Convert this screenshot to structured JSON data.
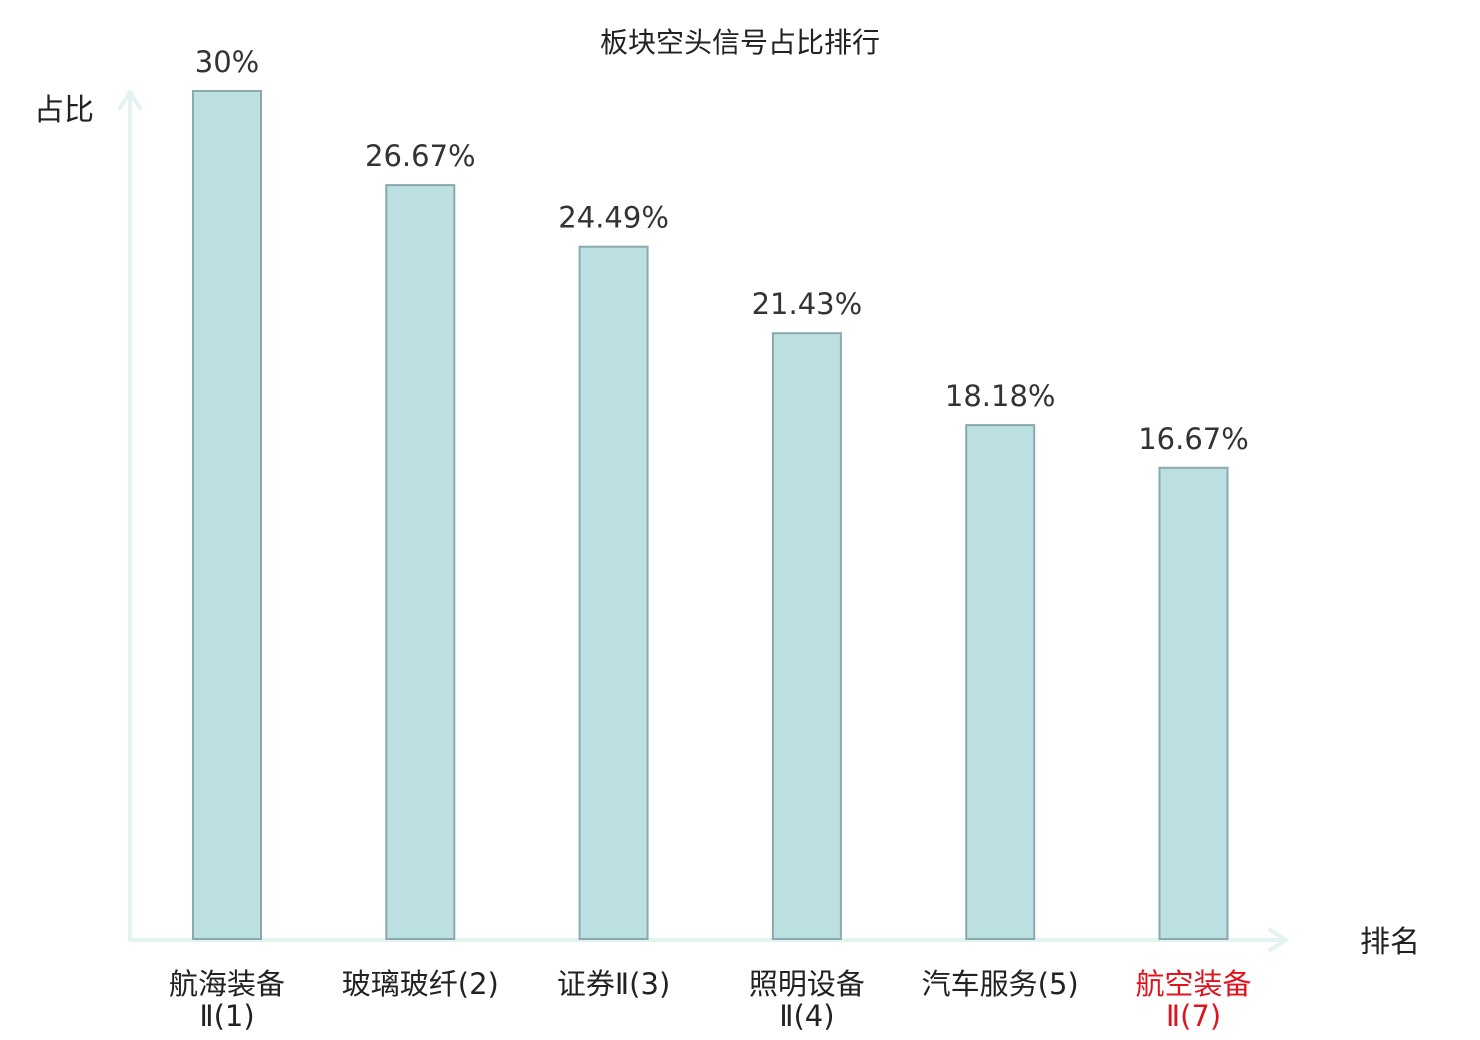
{
  "chart_data": {
    "type": "bar",
    "title": "板块空头信号占比排行",
    "ylabel": "占比",
    "xlabel": "排名",
    "categories": [
      {
        "lines": [
          "航海装备",
          "Ⅱ(1)"
        ],
        "highlight": false
      },
      {
        "lines": [
          "玻璃玻纤(2)"
        ],
        "highlight": false
      },
      {
        "lines": [
          "证券Ⅱ(3)"
        ],
        "highlight": false
      },
      {
        "lines": [
          "照明设备",
          "Ⅱ(4)"
        ],
        "highlight": false
      },
      {
        "lines": [
          "汽车服务(5)"
        ],
        "highlight": false
      },
      {
        "lines": [
          "航空装备",
          "Ⅱ(7)"
        ],
        "highlight": true
      }
    ],
    "values": [
      30,
      26.67,
      24.49,
      21.43,
      18.18,
      16.67
    ],
    "value_labels": [
      "30%",
      "26.67%",
      "24.49%",
      "21.43%",
      "18.18%",
      "16.67%"
    ],
    "ylim": [
      0,
      30
    ],
    "grid": false,
    "colors": {
      "bar_fill": "#bce0e2",
      "bar_stroke": "#8aa9ad",
      "axis": "#e2f3f2",
      "text": "#222222",
      "highlight_text": "#e0141e"
    }
  }
}
